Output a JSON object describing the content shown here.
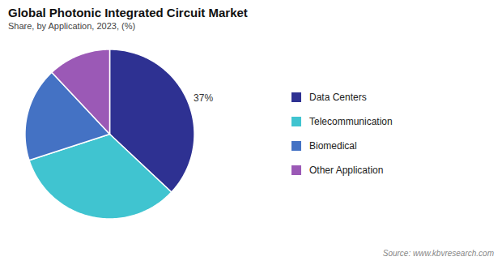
{
  "chart_data": {
    "type": "pie",
    "title": "Global Photonic Integrated Circuit Market",
    "subtitle": "Share, by Application, 2023, (%)",
    "caption": "Source: www.kbvresearch.com",
    "categories": [
      "Data Centers",
      "Telecommunication",
      "Biomedical",
      "Other Application"
    ],
    "values": [
      37,
      33,
      18,
      12
    ],
    "value_labels": [
      "37%",
      null,
      null,
      null
    ],
    "colors": [
      "#2e3192",
      "#40c4d0",
      "#4472c4",
      "#9b59b6"
    ],
    "legend": "right"
  }
}
